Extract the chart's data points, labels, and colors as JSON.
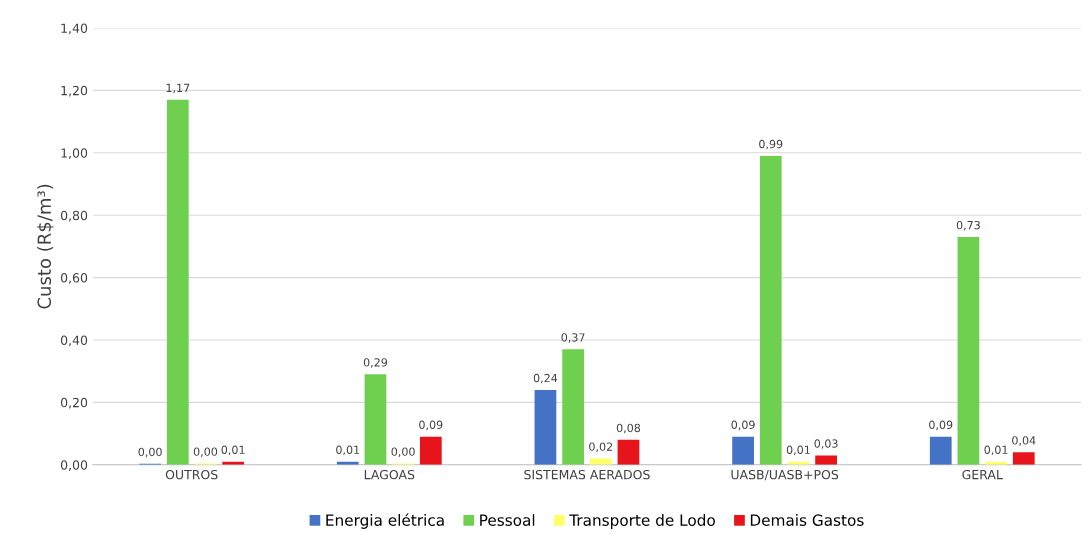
{
  "chart_data": {
    "type": "bar",
    "ylabel": "Custo (R$/m³)",
    "categories": [
      "OUTROS",
      "LAGOAS",
      "SISTEMAS AERADOS",
      "UASB/UASB+POS",
      "GERAL"
    ],
    "series": [
      {
        "name": "Energia elétrica",
        "color": "#4472c4",
        "values": [
          0.003,
          0.01,
          0.24,
          0.09,
          0.09
        ],
        "value_labels": [
          "0,00",
          "0,01",
          "0,24",
          "0,09",
          "0,09"
        ]
      },
      {
        "name": "Pessoal",
        "color": "#6fcf4f",
        "values": [
          1.17,
          0.29,
          0.37,
          0.99,
          0.73
        ],
        "value_labels": [
          "1,17",
          "0,29",
          "0,37",
          "0,99",
          "0,73"
        ]
      },
      {
        "name": "Transporte de Lodo",
        "color": "#ffff66",
        "values": [
          0.004,
          0.004,
          0.02,
          0.01,
          0.01
        ],
        "value_labels": [
          "0,00",
          "0,00",
          "0,02",
          "0,01",
          "0,01"
        ]
      },
      {
        "name": "Demais Gastos",
        "color": "#e8141c",
        "values": [
          0.01,
          0.09,
          0.08,
          0.03,
          0.04
        ],
        "value_labels": [
          "0,01",
          "0,09",
          "0,08",
          "0,03",
          "0,04"
        ]
      }
    ],
    "ylim": [
      0,
      1.4
    ],
    "yticks": [
      {
        "value": 0,
        "label": "0,00"
      },
      {
        "value": 0.2,
        "label": "0,20"
      },
      {
        "value": 0.4,
        "label": "0,40"
      },
      {
        "value": 0.6,
        "label": "0,60"
      },
      {
        "value": 0.8,
        "label": "0,80"
      },
      {
        "value": 1.0,
        "label": "1,00"
      },
      {
        "value": 1.2,
        "label": "1,20"
      },
      {
        "value": 1.4,
        "label": "1,40"
      }
    ],
    "grid": "y",
    "legend": "bottom"
  }
}
